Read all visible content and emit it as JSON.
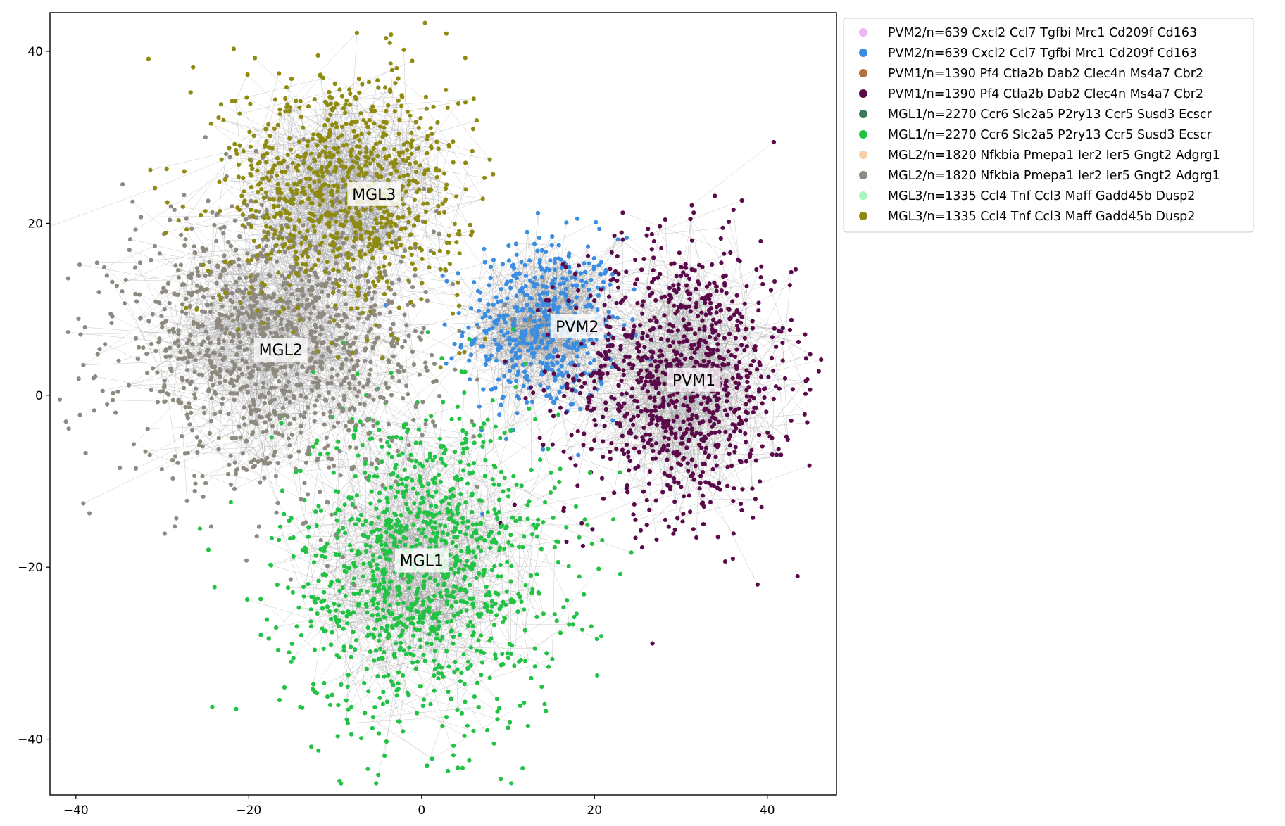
{
  "chart_data": {
    "type": "scatter",
    "title": "",
    "xlabel": "",
    "ylabel": "",
    "xlim": [
      -43,
      48
    ],
    "ylim": [
      -46.5,
      44.5
    ],
    "xticks": [
      -40,
      -20,
      0,
      20,
      40
    ],
    "yticks": [
      -40,
      -20,
      0,
      20,
      40
    ],
    "xtick_labels": [
      "−40",
      "−20",
      "0",
      "20",
      "40"
    ],
    "ytick_labels": [
      "−40",
      "−20",
      "0",
      "20",
      "40"
    ],
    "grid": false,
    "legend_position": "outside-right-top",
    "series": [
      {
        "name": "PVM2/n=639 Cxcl2 Ccl7 Tgfbi Mrc1 Cd209f Cd163",
        "color": "#eeb4f5",
        "role": "legend-only"
      },
      {
        "name": "PVM2/n=639 Cxcl2 Ccl7 Tgfbi Mrc1 Cd209f Cd163",
        "color": "#3a8de0",
        "role": "points",
        "center": [
          14,
          8
        ],
        "spread": [
          4.5,
          5.2
        ],
        "count": 520
      },
      {
        "name": "PVM1/n=1390 Pf4 Ctla2b Dab2 Clec4n Ms4a7 Cbr2",
        "color": "#b07040",
        "role": "legend-only"
      },
      {
        "name": "PVM1/n=1390 Pf4 Ctla2b Dab2 Clec4n Ms4a7 Cbr2",
        "color": "#5a0a4a",
        "role": "points",
        "center": [
          30,
          2
        ],
        "spread": [
          6.5,
          8
        ],
        "count": 1000
      },
      {
        "name": "MGL1/n=2270 Ccr6 Slc2a5 P2ry13 Ccr5 Susd3 Ecscr",
        "color": "#3a7a5a",
        "role": "legend-only"
      },
      {
        "name": "MGL1/n=2270 Ccr6 Slc2a5 P2ry13 Ccr5 Susd3 Ecscr",
        "color": "#22c244",
        "role": "points",
        "center": [
          0,
          -20
        ],
        "spread": [
          8,
          9.5
        ],
        "count": 1200
      },
      {
        "name": "MGL2/n=1820 Nfkbia Pmepa1 Ier2 Ier5 Gngt2 Adgrg1",
        "color": "#f7cfa8",
        "role": "legend-only"
      },
      {
        "name": "MGL2/n=1820 Nfkbia Pmepa1 Ier2 Ier5 Gngt2 Adgrg1",
        "color": "#8f8a80",
        "role": "points",
        "center": [
          -17,
          6
        ],
        "spread": [
          9,
          8
        ],
        "count": 1300
      },
      {
        "name": "MGL3/n=1335 Ccl4 Tnf Ccl3 Maff Gadd45b Dusp2",
        "color": "#a8f5c0",
        "role": "legend-only"
      },
      {
        "name": "MGL3/n=1335 Ccl4 Tnf Ccl3 Maff Gadd45b Dusp2",
        "color": "#8f8a10",
        "role": "points",
        "center": [
          -9,
          24
        ],
        "spread": [
          7,
          7
        ],
        "count": 900
      }
    ],
    "annotations": [
      {
        "text": "MGL3",
        "x": -5.5,
        "y": 23.4
      },
      {
        "text": "MGL2",
        "x": -16.3,
        "y": 5.3
      },
      {
        "text": "MGL1",
        "x": 0,
        "y": -19.2
      },
      {
        "text": "PVM2",
        "x": 18,
        "y": 8
      },
      {
        "text": "PVM1",
        "x": 31.5,
        "y": 1.8
      }
    ],
    "edge_color": "#8a8a8a"
  }
}
